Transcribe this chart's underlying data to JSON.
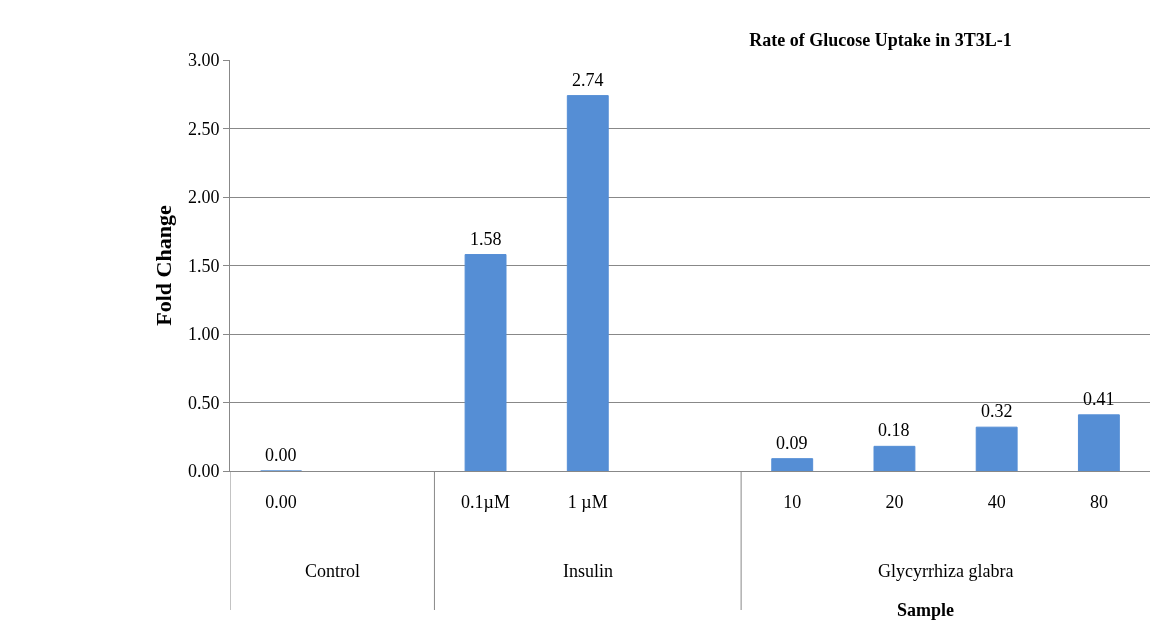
{
  "chart_data": {
    "type": "bar",
    "title": "Rate of Glucose Uptake in 3T3L-1",
    "xlabel": "Sample",
    "ylabel": "Fold Change",
    "categories": [
      "0.00",
      null,
      "0.1µM",
      "1 µM",
      null,
      "10",
      "20",
      "40",
      "80"
    ],
    "values": [
      0,
      null,
      1.58,
      2.74,
      null,
      0.09,
      0.18,
      0.32,
      0.41
    ],
    "value_labels": [
      "0.00",
      null,
      "1.58",
      "2.74",
      null,
      "0.09",
      "0.18",
      "0.32",
      "0.41"
    ],
    "color": "#558ed5",
    "ylim": [
      0,
      3
    ],
    "yticks": [
      {
        "value": 0,
        "label": "0.00"
      },
      {
        "value": 0.5,
        "label": "0.50"
      },
      {
        "value": 1,
        "label": "1.00"
      },
      {
        "value": 1.5,
        "label": "1.50"
      },
      {
        "value": 2,
        "label": "2.00"
      },
      {
        "value": 2.5,
        "label": "2.50"
      },
      {
        "value": 3,
        "label": "3.00"
      }
    ],
    "grid": "y",
    "annotations": [
      "Control",
      "Insulin",
      "Glycyrrhiza glabra"
    ]
  }
}
